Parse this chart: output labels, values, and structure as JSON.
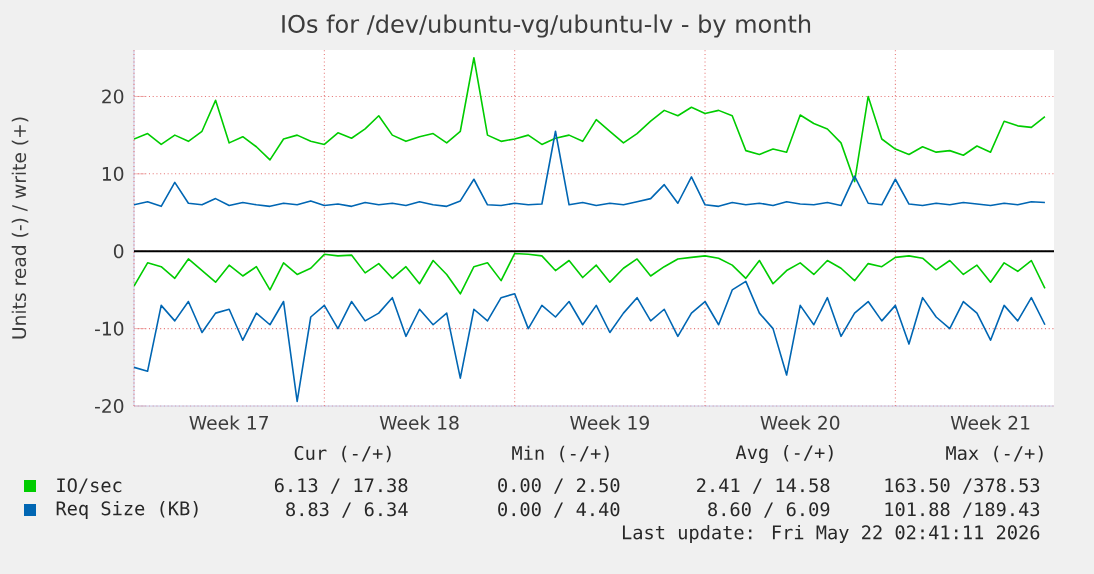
{
  "chart_data": {
    "type": "line",
    "title": "IOs for /dev/ubuntu-vg/ubuntu-lv - by month",
    "ylabel": "Units read (-) / write (+)",
    "x": [
      "2026-04-19T00:00",
      "2026-04-19T12:00",
      "2026-04-20T00:00",
      "2026-04-20T12:00",
      "2026-04-21T00:00",
      "2026-04-21T12:00",
      "2026-04-22T00:00",
      "2026-04-22T12:00",
      "2026-04-23T00:00",
      "2026-04-23T12:00",
      "2026-04-24T00:00",
      "2026-04-24T12:00",
      "2026-04-25T00:00",
      "2026-04-25T12:00",
      "2026-04-26T00:00",
      "2026-04-26T12:00",
      "2026-04-27T00:00",
      "2026-04-27T12:00",
      "2026-04-28T00:00",
      "2026-04-28T12:00",
      "2026-04-29T00:00",
      "2026-04-29T12:00",
      "2026-04-30T00:00",
      "2026-04-30T12:00",
      "2026-05-01T00:00",
      "2026-05-01T12:00",
      "2026-05-02T00:00",
      "2026-05-02T12:00",
      "2026-05-03T00:00",
      "2026-05-03T12:00",
      "2026-05-04T00:00",
      "2026-05-04T12:00",
      "2026-05-05T00:00",
      "2026-05-05T12:00",
      "2026-05-06T00:00",
      "2026-05-06T12:00",
      "2026-05-07T00:00",
      "2026-05-07T12:00",
      "2026-05-08T00:00",
      "2026-05-08T12:00",
      "2026-05-09T00:00",
      "2026-05-09T12:00",
      "2026-05-10T00:00",
      "2026-05-10T12:00",
      "2026-05-11T00:00",
      "2026-05-11T12:00",
      "2026-05-12T00:00",
      "2026-05-12T12:00",
      "2026-05-13T00:00",
      "2026-05-13T12:00",
      "2026-05-14T00:00",
      "2026-05-14T12:00",
      "2026-05-15T00:00",
      "2026-05-15T12:00",
      "2026-05-16T00:00",
      "2026-05-16T12:00",
      "2026-05-17T00:00",
      "2026-05-17T12:00",
      "2026-05-18T00:00",
      "2026-05-18T12:00",
      "2026-05-19T00:00",
      "2026-05-19T12:00",
      "2026-05-20T00:00",
      "2026-05-20T12:00",
      "2026-05-21T00:00",
      "2026-05-21T12:00",
      "2026-05-22T00:00",
      "2026-05-22T12:00"
    ],
    "series": [
      {
        "name": "IO/sec",
        "color": "#00cc00",
        "values": [
          14.5,
          15.2,
          13.8,
          15.0,
          14.2,
          15.5,
          19.5,
          14.0,
          14.8,
          13.5,
          11.8,
          14.5,
          15.0,
          14.2,
          13.8,
          15.3,
          14.6,
          15.8,
          17.5,
          15.0,
          14.2,
          14.8,
          15.2,
          14.0,
          15.5,
          25,
          15.0,
          14.2,
          14.5,
          15.0,
          13.8,
          14.6,
          15.0,
          14.2,
          17.0,
          15.5,
          14.0,
          15.2,
          16.8,
          18.2,
          17.5,
          18.6,
          17.8,
          18.2,
          17.5,
          13.0,
          12.5,
          13.2,
          12.8,
          17.6,
          16.5,
          15.8,
          14.0,
          9.0,
          20.0,
          14.5,
          13.2,
          12.5,
          13.5,
          12.8,
          13.0,
          12.4,
          13.6,
          12.8,
          16.8,
          16.2,
          16.0,
          17.4
        ]
      },
      {
        "color": "#00cc00",
        "values": [
          -4.5,
          -1.5,
          -2.0,
          -3.5,
          -1.0,
          -2.5,
          -4.0,
          -1.8,
          -3.2,
          -2.0,
          -5.0,
          -1.5,
          -3.0,
          -2.2,
          -0.4,
          -0.6,
          -0.5,
          -2.8,
          -1.6,
          -3.5,
          -2.0,
          -4.2,
          -1.2,
          -3.0,
          -5.5,
          -2.0,
          -1.5,
          -3.8,
          -0.3,
          -0.4,
          -0.6,
          -2.5,
          -1.2,
          -3.4,
          -1.8,
          -4.0,
          -2.2,
          -1.0,
          -3.2,
          -2.0,
          -1.0,
          -0.8,
          -0.6,
          -0.9,
          -1.8,
          -3.5,
          -1.2,
          -4.2,
          -2.5,
          -1.5,
          -3.0,
          -1.2,
          -2.2,
          -3.8,
          -1.6,
          -2.0,
          -0.8,
          -0.6,
          -0.9,
          -2.4,
          -1.2,
          -3.0,
          -1.8,
          -4.0,
          -1.5,
          -2.6,
          -1.2,
          -4.8
        ]
      },
      {
        "name": "Req Size (KB)",
        "color": "#0066b3",
        "values": [
          6.0,
          6.4,
          5.8,
          8.9,
          6.2,
          6.0,
          6.8,
          5.9,
          6.3,
          6.0,
          5.8,
          6.2,
          6.0,
          6.5,
          5.9,
          6.1,
          5.8,
          6.3,
          6.0,
          6.2,
          5.9,
          6.4,
          6.0,
          5.8,
          6.5,
          9.3,
          6.0,
          5.9,
          6.2,
          6.0,
          6.1,
          15.5,
          6.0,
          6.3,
          5.9,
          6.2,
          6.0,
          6.4,
          6.8,
          8.6,
          6.2,
          9.6,
          6.0,
          5.8,
          6.3,
          6.0,
          6.2,
          5.9,
          6.4,
          6.1,
          6.0,
          6.3,
          5.9,
          9.7,
          6.2,
          6.0,
          9.3,
          6.1,
          5.9,
          6.2,
          6.0,
          6.3,
          6.1,
          5.9,
          6.2,
          6.0,
          6.4,
          6.3
        ]
      },
      {
        "color": "#0066b3",
        "values": [
          -15.0,
          -15.5,
          -7.0,
          -9.0,
          -6.5,
          -10.5,
          -8.0,
          -7.5,
          -11.5,
          -8.0,
          -9.5,
          -6.5,
          -19.4,
          -8.5,
          -7.0,
          -10.0,
          -6.5,
          -9.0,
          -8.0,
          -6.0,
          -11.0,
          -7.5,
          -9.5,
          -8.0,
          -16.4,
          -7.5,
          -9.0,
          -6.0,
          -5.5,
          -10.0,
          -7.0,
          -8.5,
          -6.5,
          -9.5,
          -7.0,
          -10.5,
          -8.0,
          -6.0,
          -9.0,
          -7.5,
          -11.0,
          -8.0,
          -6.5,
          -9.5,
          -5.0,
          -3.9,
          -8.0,
          -10.0,
          -16.0,
          -7.0,
          -9.5,
          -6.0,
          -11.0,
          -8.0,
          -6.5,
          -9.0,
          -7.0,
          -12.0,
          -6.0,
          -8.5,
          -10.0,
          -6.5,
          -8.0,
          -11.5,
          -7.0,
          -9.0,
          -6.0,
          -9.5
        ]
      }
    ],
    "xlim": [
      "2026-04-19T00:00",
      "2026-05-22T20:00"
    ],
    "xticks": [
      {
        "value": "2026-04-19T00:00",
        "label": null
      },
      {
        "value": "2026-04-22T12:00",
        "label": "Week 17"
      },
      {
        "value": "2026-04-26T00:00",
        "label": null
      },
      {
        "value": "2026-04-29T12:00",
        "label": "Week 18"
      },
      {
        "value": "2026-05-03T00:00",
        "label": null
      },
      {
        "value": "2026-05-06T12:00",
        "label": "Week 19"
      },
      {
        "value": "2026-05-10T00:00",
        "label": null
      },
      {
        "value": "2026-05-13T12:00",
        "label": "Week 20"
      },
      {
        "value": "2026-05-17T00:00",
        "label": null
      },
      {
        "value": "2026-05-20T12:00",
        "label": "Week 21"
      }
    ],
    "ylim": [
      -20,
      26
    ],
    "yticks": [
      -20,
      -10,
      0,
      10,
      20
    ],
    "grid": true,
    "legend": "bottom",
    "line_style": "solid",
    "ref_lines": [
      {
        "axis": "y",
        "value": 0,
        "color": "#000000"
      }
    ],
    "annotations": [
      "Cur (-/+)",
      "Min (-/+)",
      "Avg (-/+)",
      "Max (-/+)",
      "6.13 / 17.38",
      "0.00 / 2.50",
      "2.41 / 14.58",
      "163.50 /378.53",
      "8.83 / 6.34",
      "0.00 / 4.40",
      "8.60 / 6.09",
      "101.88 /189.43",
      "Last update: Fri May 22 02:41:11 2026"
    ]
  }
}
